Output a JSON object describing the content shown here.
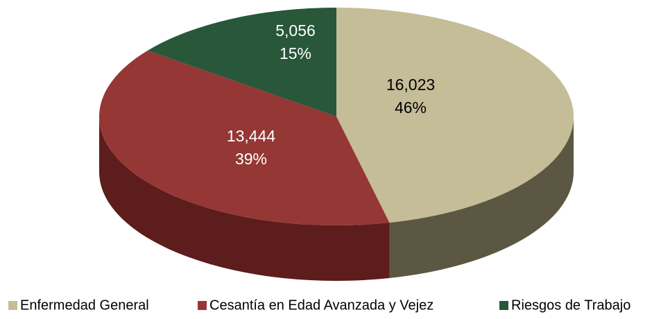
{
  "chart_data": {
    "type": "pie",
    "categories": [
      "Enfermedad General",
      "Cesantía en Edad Avanzada y Vejez",
      "Riesgos de Trabajo"
    ],
    "values": [
      16023,
      13444,
      5056
    ],
    "value_labels": [
      "16,023",
      "13,444",
      "5,056"
    ],
    "percentages": [
      46,
      39,
      15
    ],
    "percentage_labels": [
      "46%",
      "39%",
      "15%"
    ],
    "colors": [
      "#c4bd97",
      "#953735",
      "#28573a"
    ],
    "side_colors": [
      "#5b5742",
      "#5c1d1c",
      "#173524"
    ],
    "legend": "bottom"
  }
}
